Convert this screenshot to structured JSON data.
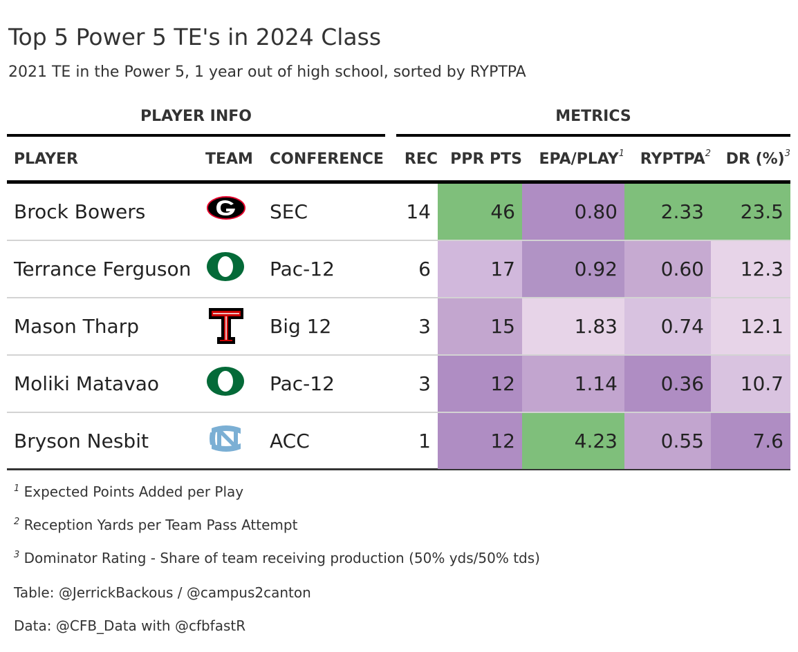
{
  "title": "Top 5 Power 5 TE's in 2024 Class",
  "subtitle": "2021 TE in the Power 5, 1 year out of high school, sorted by RYPTPA",
  "spanners": {
    "player_info": "PLAYER INFO",
    "metrics": "METRICS"
  },
  "columns": {
    "player": "PLAYER",
    "team": "TEAM",
    "conference": "CONFERENCE",
    "rec": "REC",
    "ppr": "PPR PTS",
    "epa": "EPA/PLAY",
    "epa_mark": "1",
    "ryptpa": "RYPTPA",
    "ryptpa_mark": "2",
    "dr": "DR (%)",
    "dr_mark": "3"
  },
  "rows": [
    {
      "player": "Brock Bowers",
      "team_logo": "georgia-logo",
      "conference": "SEC",
      "rec": "14",
      "ppr": "46",
      "epa": "0.80",
      "ryptpa": "2.33",
      "dr": "23.5",
      "colors": {
        "ppr": "#7fbf7b",
        "epa": "#af8dc3",
        "ryptpa": "#7fbf7b",
        "dr": "#7fbf7b"
      }
    },
    {
      "player": "Terrance Ferguson",
      "team_logo": "oregon-logo",
      "conference": "Pac-12",
      "rec": "6",
      "ppr": "17",
      "epa": "0.92",
      "ryptpa": "0.60",
      "dr": "12.3",
      "colors": {
        "ppr": "#d1b8dc",
        "epa": "#b193c5",
        "ryptpa": "#c6aad1",
        "dr": "#e7d4e8"
      }
    },
    {
      "player": "Mason Tharp",
      "team_logo": "texas-tech-logo",
      "conference": "Big 12",
      "rec": "3",
      "ppr": "15",
      "epa": "1.83",
      "ryptpa": "0.74",
      "dr": "12.1",
      "colors": {
        "ppr": "#c3a6cf",
        "epa": "#e7d4e8",
        "ryptpa": "#d8c2e0",
        "dr": "#e7d4e8"
      }
    },
    {
      "player": "Moliki Matavao",
      "team_logo": "oregon-logo",
      "conference": "Pac-12",
      "rec": "3",
      "ppr": "12",
      "epa": "1.14",
      "ryptpa": "0.36",
      "dr": "10.7",
      "colors": {
        "ppr": "#af8dc3",
        "epa": "#c2a5cf",
        "ryptpa": "#af8dc3",
        "dr": "#d9c3e0"
      }
    },
    {
      "player": "Bryson Nesbit",
      "team_logo": "unc-logo",
      "conference": "ACC",
      "rec": "1",
      "ppr": "12",
      "epa": "4.23",
      "ryptpa": "0.55",
      "dr": "7.6",
      "colors": {
        "ppr": "#af8dc3",
        "epa": "#7fbf7b",
        "ryptpa": "#c2a5cf",
        "dr": "#af8dc3"
      }
    }
  ],
  "footnotes": [
    {
      "mark": "1",
      "text": "Expected Points Added per Play"
    },
    {
      "mark": "2",
      "text": "Reception Yards per Team Pass Attempt"
    },
    {
      "mark": "3",
      "text": "Dominator Rating - Share of team receiving production (50% yds/50% tds)"
    }
  ],
  "source_notes": [
    "Table: @JerrickBackous / @campus2canton",
    "Data: @CFB_Data with @cfbfastR"
  ]
}
